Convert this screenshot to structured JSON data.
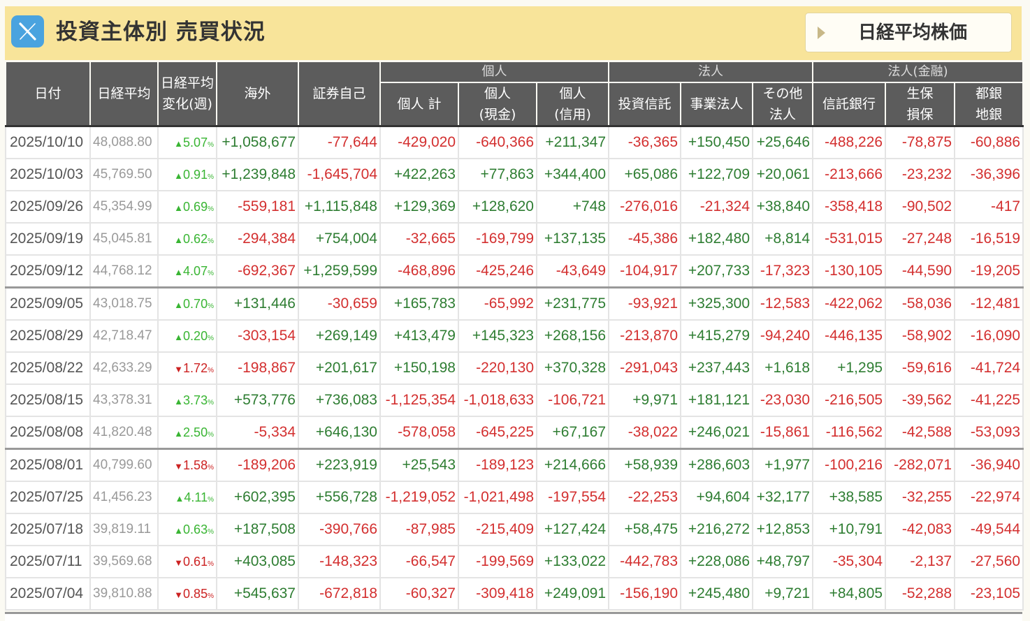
{
  "header": {
    "x_icon": "x-logo-icon",
    "title": "投資主体別 売買状況",
    "button_label": "日経平均株価"
  },
  "table": {
    "group_headers": [
      "個人",
      "法人",
      "法人(金融)"
    ],
    "columns": {
      "date": "日付",
      "nikkei": "日経平均",
      "change_l1": "日経平均",
      "change_l2": "変化(週)",
      "foreign": "海外",
      "securities": "証券自己",
      "indiv_total": "個人 計",
      "indiv_cash_l1": "個人",
      "indiv_cash_l2": "(現金)",
      "indiv_margin_l1": "個人",
      "indiv_margin_l2": "(信用)",
      "trust": "投資信託",
      "business": "事業法人",
      "other_l1": "その他",
      "other_l2": "法人",
      "trust_bank": "信託銀行",
      "insurance_l1": "生保",
      "insurance_l2": "損保",
      "banks_l1": "都銀",
      "banks_l2": "地銀"
    },
    "rows": [
      {
        "date": "2025/10/10",
        "nikkei": "48,088.80",
        "dir": "up",
        "change": "5.07",
        "values": [
          "+1,058,677",
          "-77,644",
          "-429,020",
          "-640,366",
          "+211,347",
          "-36,365",
          "+150,450",
          "+25,646",
          "-488,226",
          "-78,875",
          "-60,886"
        ]
      },
      {
        "date": "2025/10/03",
        "nikkei": "45,769.50",
        "dir": "up",
        "change": "0.91",
        "values": [
          "+1,239,848",
          "-1,645,704",
          "+422,263",
          "+77,863",
          "+344,400",
          "+65,086",
          "+122,709",
          "+20,061",
          "-213,666",
          "-23,232",
          "-36,396"
        ]
      },
      {
        "date": "2025/09/26",
        "nikkei": "45,354.99",
        "dir": "up",
        "change": "0.69",
        "values": [
          "-559,181",
          "+1,115,848",
          "+129,369",
          "+128,620",
          "+748",
          "-276,016",
          "-21,324",
          "+38,840",
          "-358,418",
          "-90,502",
          "-417"
        ]
      },
      {
        "date": "2025/09/19",
        "nikkei": "45,045.81",
        "dir": "up",
        "change": "0.62",
        "values": [
          "-294,384",
          "+754,004",
          "-32,665",
          "-169,799",
          "+137,135",
          "-45,386",
          "+182,480",
          "+8,814",
          "-531,015",
          "-27,248",
          "-16,519"
        ]
      },
      {
        "date": "2025/09/12",
        "nikkei": "44,768.12",
        "dir": "up",
        "change": "4.07",
        "values": [
          "-692,367",
          "+1,259,599",
          "-468,896",
          "-425,246",
          "-43,649",
          "-104,917",
          "+207,733",
          "-17,323",
          "-130,105",
          "-44,590",
          "-19,205"
        ]
      },
      {
        "date": "2025/09/05",
        "nikkei": "43,018.75",
        "dir": "up",
        "change": "0.70",
        "values": [
          "+131,446",
          "-30,659",
          "+165,783",
          "-65,992",
          "+231,775",
          "-93,921",
          "+325,300",
          "-12,583",
          "-422,062",
          "-58,036",
          "-12,481"
        ]
      },
      {
        "date": "2025/08/29",
        "nikkei": "42,718.47",
        "dir": "up",
        "change": "0.20",
        "values": [
          "-303,154",
          "+269,149",
          "+413,479",
          "+145,323",
          "+268,156",
          "-213,870",
          "+415,279",
          "-94,240",
          "-446,135",
          "-58,902",
          "-16,090"
        ]
      },
      {
        "date": "2025/08/22",
        "nikkei": "42,633.29",
        "dir": "down",
        "change": "1.72",
        "values": [
          "-198,867",
          "+201,617",
          "+150,198",
          "-220,130",
          "+370,328",
          "-291,043",
          "+237,443",
          "+1,618",
          "+1,295",
          "-59,616",
          "-41,724"
        ]
      },
      {
        "date": "2025/08/15",
        "nikkei": "43,378.31",
        "dir": "up",
        "change": "3.73",
        "values": [
          "+573,776",
          "+736,083",
          "-1,125,354",
          "-1,018,633",
          "-106,721",
          "+9,971",
          "+181,121",
          "-23,030",
          "-216,505",
          "-39,562",
          "-41,225"
        ]
      },
      {
        "date": "2025/08/08",
        "nikkei": "41,820.48",
        "dir": "up",
        "change": "2.50",
        "values": [
          "-5,334",
          "+646,130",
          "-578,058",
          "-645,225",
          "+67,167",
          "-38,022",
          "+246,021",
          "-15,861",
          "-116,562",
          "-42,588",
          "-53,093"
        ]
      },
      {
        "date": "2025/08/01",
        "nikkei": "40,799.60",
        "dir": "down",
        "change": "1.58",
        "values": [
          "-189,206",
          "+223,919",
          "+25,543",
          "-189,123",
          "+214,666",
          "+58,939",
          "+286,603",
          "+1,977",
          "-100,216",
          "-282,071",
          "-36,940"
        ]
      },
      {
        "date": "2025/07/25",
        "nikkei": "41,456.23",
        "dir": "up",
        "change": "4.11",
        "values": [
          "+602,395",
          "+556,728",
          "-1,219,052",
          "-1,021,498",
          "-197,554",
          "-22,253",
          "+94,604",
          "+32,177",
          "+38,585",
          "-32,255",
          "-22,974"
        ]
      },
      {
        "date": "2025/07/18",
        "nikkei": "39,819.11",
        "dir": "up",
        "change": "0.63",
        "values": [
          "+187,508",
          "-390,766",
          "-87,985",
          "-215,409",
          "+127,424",
          "+58,475",
          "+216,272",
          "+12,853",
          "+10,791",
          "-42,083",
          "-49,544"
        ]
      },
      {
        "date": "2025/07/11",
        "nikkei": "39,569.68",
        "dir": "down",
        "change": "0.61",
        "values": [
          "+403,085",
          "-148,323",
          "-66,547",
          "-199,569",
          "+133,022",
          "-442,783",
          "+228,086",
          "+48,797",
          "-35,304",
          "-2,137",
          "-27,560"
        ]
      },
      {
        "date": "2025/07/04",
        "nikkei": "39,810.88",
        "dir": "down",
        "change": "0.85",
        "values": [
          "+545,637",
          "-672,818",
          "-60,327",
          "-309,418",
          "+249,091",
          "-156,190",
          "+245,480",
          "+9,721",
          "+84,805",
          "-52,288",
          "-23,105"
        ]
      }
    ]
  },
  "colors": {
    "header_bg": "#f8e49a",
    "column_header_bg": "#5c5c5c",
    "positive": "#2e7d32",
    "negative": "#d32f2f",
    "change_up": "#39b533",
    "change_down": "#cc2222",
    "icon_bg": "#4aa3df"
  }
}
